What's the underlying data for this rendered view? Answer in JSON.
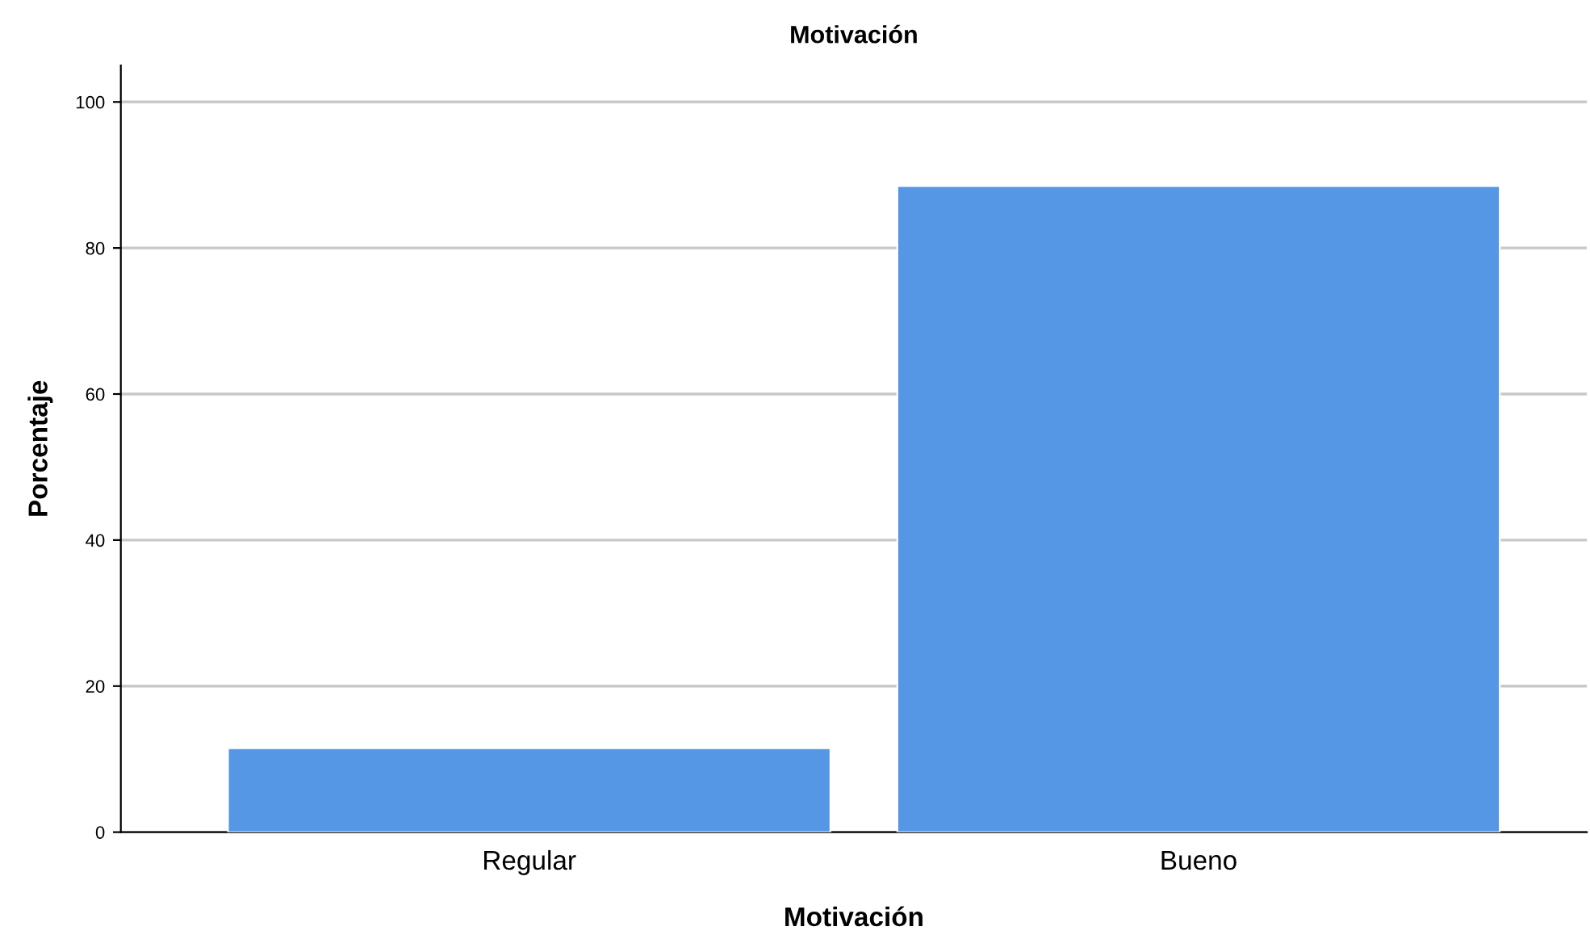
{
  "chart_data": {
    "type": "bar",
    "title": "Motivación",
    "xlabel": "Motivación",
    "ylabel": "Porcentaje",
    "categories": [
      "Regular",
      "Bueno"
    ],
    "values": [
      11.5,
      88.5
    ],
    "color": "#5596e5",
    "ylim": [
      0,
      105
    ],
    "yticks": [
      0,
      20,
      40,
      60,
      80,
      100
    ],
    "grid": "y"
  }
}
